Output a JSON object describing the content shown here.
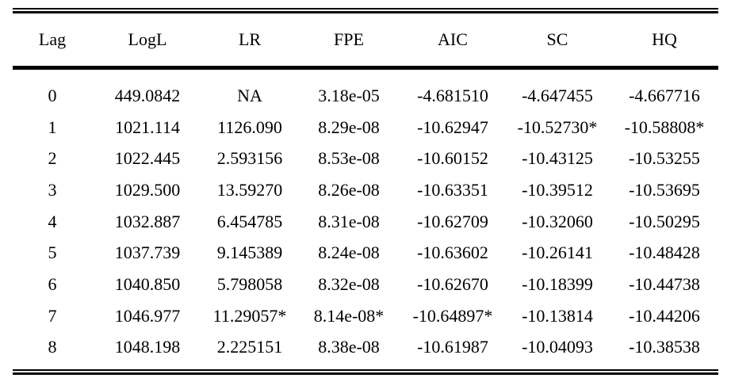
{
  "table": {
    "headers": [
      "Lag",
      "LogL",
      "LR",
      "FPE",
      "AIC",
      "SC",
      "HQ"
    ],
    "rows": [
      [
        "0",
        "449.0842",
        "NA",
        "3.18e-05",
        "-4.681510",
        "-4.647455",
        "-4.667716"
      ],
      [
        "1",
        "1021.114",
        "1126.090",
        "8.29e-08",
        "-10.62947",
        "-10.52730*",
        "-10.58808*"
      ],
      [
        "2",
        "1022.445",
        "2.593156",
        "8.53e-08",
        "-10.60152",
        "-10.43125",
        "-10.53255"
      ],
      [
        "3",
        "1029.500",
        "13.59270",
        "8.26e-08",
        "-10.63351",
        "-10.39512",
        "-10.53695"
      ],
      [
        "4",
        "1032.887",
        "6.454785",
        "8.31e-08",
        "-10.62709",
        "-10.32060",
        "-10.50295"
      ],
      [
        "5",
        "1037.739",
        "9.145389",
        "8.24e-08",
        "-10.63602",
        "-10.26141",
        "-10.48428"
      ],
      [
        "6",
        "1040.850",
        "5.798058",
        "8.32e-08",
        "-10.62670",
        "-10.18399",
        "-10.44738"
      ],
      [
        "7",
        "1046.977",
        "11.29057*",
        "8.14e-08*",
        "-10.64897*",
        "-10.13814",
        "-10.44206"
      ],
      [
        "8",
        "1048.198",
        "2.225151",
        "8.38e-08",
        "-10.61987",
        "-10.04093",
        "-10.38538"
      ]
    ]
  }
}
